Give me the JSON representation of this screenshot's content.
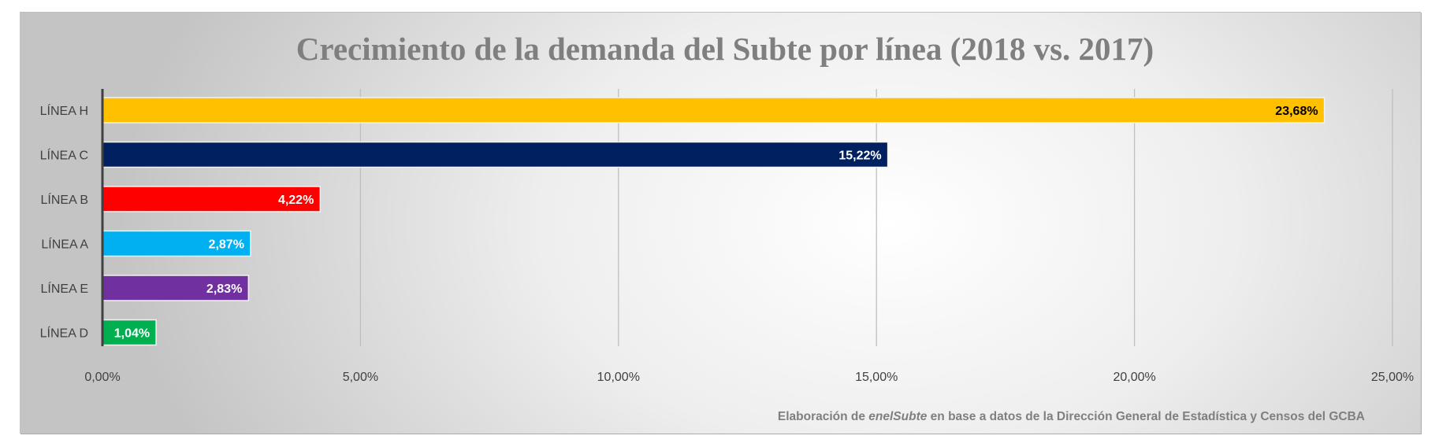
{
  "chart_data": {
    "type": "bar",
    "orientation": "horizontal",
    "title": "Crecimiento de la demanda del Subte por línea (2018 vs. 2017)",
    "categories": [
      "LÍNEA H",
      "LÍNEA C",
      "LÍNEA B",
      "LÍNEA A",
      "LÍNEA E",
      "LÍNEA D"
    ],
    "values": [
      23.68,
      15.22,
      4.22,
      2.87,
      2.83,
      1.04
    ],
    "data_labels": [
      "23,68%",
      "15,22%",
      "4,22%",
      "2,87%",
      "2,83%",
      "1,04%"
    ],
    "colors": [
      "#ffc000",
      "#002060",
      "#ff0000",
      "#00b0f0",
      "#7030a0",
      "#00b050"
    ],
    "label_colors": [
      "#000000",
      "#ffffff",
      "#ffffff",
      "#ffffff",
      "#ffffff",
      "#ffffff"
    ],
    "xlim": [
      0,
      25
    ],
    "x_ticks": [
      0,
      5,
      10,
      15,
      20,
      25
    ],
    "x_tick_labels": [
      "0,00%",
      "5,00%",
      "10,00%",
      "15,00%",
      "20,00%",
      "25,00%"
    ],
    "xlabel": "",
    "ylabel": "",
    "grid": "vertical",
    "legend": "none"
  },
  "source": {
    "prefix": "Elaboración de ",
    "brand": "enelSubte",
    "suffix": " en base a datos de la Dirección General de Estadística y Censos del GCBA"
  }
}
